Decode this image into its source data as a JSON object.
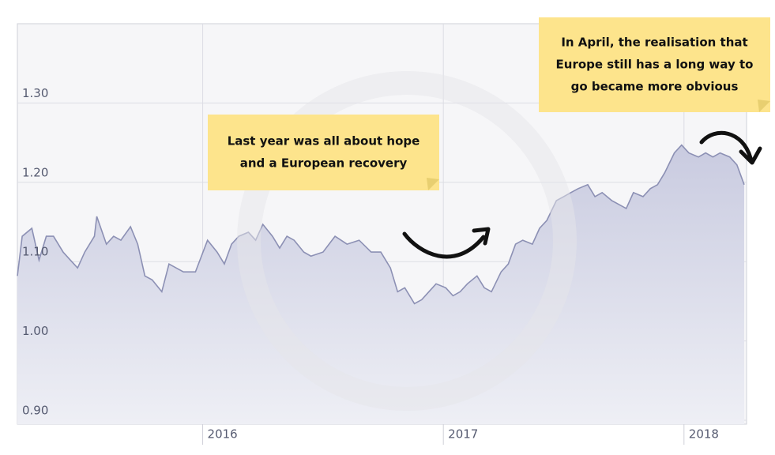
{
  "chart_data": {
    "type": "area",
    "x": [
      2015.23,
      2015.25,
      2015.29,
      2015.32,
      2015.35,
      2015.38,
      2015.42,
      2015.45,
      2015.48,
      2015.51,
      2015.55,
      2015.56,
      2015.6,
      2015.63,
      2015.66,
      2015.7,
      2015.73,
      2015.76,
      2015.79,
      2015.83,
      2015.86,
      2015.89,
      2015.92,
      2015.97,
      2016.02,
      2016.06,
      2016.09,
      2016.12,
      2016.15,
      2016.19,
      2016.22,
      2016.25,
      2016.29,
      2016.32,
      2016.35,
      2016.38,
      2016.42,
      2016.45,
      2016.5,
      2016.55,
      2016.6,
      2016.65,
      2016.7,
      2016.74,
      2016.78,
      2016.81,
      2016.84,
      2016.88,
      2016.91,
      2016.94,
      2016.97,
      2017.01,
      2017.04,
      2017.07,
      2017.1,
      2017.14,
      2017.17,
      2017.2,
      2017.24,
      2017.27,
      2017.3,
      2017.33,
      2017.37,
      2017.4,
      2017.43,
      2017.47,
      2017.5,
      2017.53,
      2017.56,
      2017.6,
      2017.63,
      2017.66,
      2017.7,
      2017.73,
      2017.76,
      2017.79,
      2017.83,
      2017.86,
      2017.89,
      2017.92,
      2017.96,
      2017.99,
      2018.02,
      2018.06,
      2018.09,
      2018.12,
      2018.15,
      2018.19,
      2018.22,
      2018.25
    ],
    "values": [
      1.082,
      1.132,
      1.142,
      1.102,
      1.132,
      1.132,
      1.112,
      1.102,
      1.092,
      1.112,
      1.132,
      1.157,
      1.122,
      1.132,
      1.127,
      1.144,
      1.122,
      1.082,
      1.077,
      1.062,
      1.097,
      1.092,
      1.087,
      1.087,
      1.127,
      1.112,
      1.097,
      1.122,
      1.132,
      1.137,
      1.127,
      1.147,
      1.132,
      1.117,
      1.132,
      1.127,
      1.112,
      1.107,
      1.112,
      1.132,
      1.122,
      1.127,
      1.112,
      1.112,
      1.092,
      1.062,
      1.067,
      1.047,
      1.052,
      1.062,
      1.072,
      1.067,
      1.057,
      1.062,
      1.072,
      1.082,
      1.067,
      1.062,
      1.087,
      1.097,
      1.122,
      1.127,
      1.122,
      1.142,
      1.152,
      1.177,
      1.182,
      1.187,
      1.192,
      1.197,
      1.182,
      1.187,
      1.177,
      1.172,
      1.167,
      1.187,
      1.182,
      1.192,
      1.197,
      1.212,
      1.237,
      1.247,
      1.237,
      1.232,
      1.237,
      1.232,
      1.237,
      1.232,
      1.222,
      1.197
    ],
    "color": "#8c90b4",
    "xlim": [
      2015.23,
      2018.26
    ],
    "ylim": [
      0.895,
      1.4
    ],
    "xticks": [
      2016,
      2017,
      2018
    ],
    "yticks": [
      {
        "value": 0.9,
        "label": "0.90"
      },
      {
        "value": 1.0,
        "label": "1.00"
      },
      {
        "value": 1.1,
        "label": "1.10"
      },
      {
        "value": 1.2,
        "label": "1.20"
      },
      {
        "value": 1.3,
        "label": "1.30"
      }
    ],
    "grid": true,
    "annotations": [
      {
        "lines": [
          "Last year was all about hope",
          "and a European recovery"
        ]
      },
      {
        "lines": [
          "In April, the realisation that",
          "Europe still has a long way to",
          "go became more obvious"
        ]
      }
    ]
  }
}
